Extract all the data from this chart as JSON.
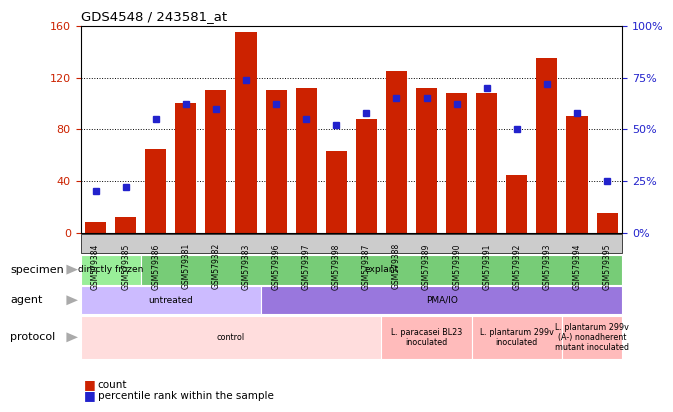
{
  "title": "GDS4548 / 243581_at",
  "samples": [
    "GSM579384",
    "GSM579385",
    "GSM579386",
    "GSM579381",
    "GSM579382",
    "GSM579383",
    "GSM579396",
    "GSM579397",
    "GSM579398",
    "GSM579387",
    "GSM579388",
    "GSM579389",
    "GSM579390",
    "GSM579391",
    "GSM579392",
    "GSM579393",
    "GSM579394",
    "GSM579395"
  ],
  "counts": [
    8,
    12,
    65,
    100,
    110,
    155,
    110,
    112,
    63,
    88,
    125,
    112,
    108,
    108,
    45,
    135,
    90,
    15
  ],
  "percentiles": [
    20,
    22,
    55,
    62,
    60,
    74,
    62,
    55,
    52,
    58,
    65,
    65,
    62,
    70,
    50,
    72,
    58,
    25
  ],
  "bar_color": "#cc2200",
  "dot_color": "#2222cc",
  "left_ylim": [
    0,
    160
  ],
  "right_ylim": [
    0,
    100
  ],
  "left_yticks": [
    0,
    40,
    80,
    120,
    160
  ],
  "right_yticks": [
    0,
    25,
    50,
    75,
    100
  ],
  "right_yticklabels": [
    "0%",
    "25%",
    "50%",
    "75%",
    "100%"
  ],
  "xtick_bg_color": "#cccccc",
  "specimen_groups": [
    {
      "label": "directly frozen",
      "start": 0,
      "end": 2,
      "color": "#99ee99"
    },
    {
      "label": "explant",
      "start": 2,
      "end": 18,
      "color": "#77cc77"
    }
  ],
  "agent_groups": [
    {
      "label": "untreated",
      "start": 0,
      "end": 6,
      "color": "#ccbbff"
    },
    {
      "label": "PMA/IO",
      "start": 6,
      "end": 18,
      "color": "#9977dd"
    }
  ],
  "protocol_groups": [
    {
      "label": "control",
      "start": 0,
      "end": 10,
      "color": "#ffdddd"
    },
    {
      "label": "L. paracasei BL23\ninoculated",
      "start": 10,
      "end": 13,
      "color": "#ffbbbb"
    },
    {
      "label": "L. plantarum 299v\ninoculated",
      "start": 13,
      "end": 16,
      "color": "#ffbbbb"
    },
    {
      "label": "L. plantarum 299v\n(A-) nonadherent\nmutant inoculated",
      "start": 16,
      "end": 18,
      "color": "#ffbbbb"
    }
  ],
  "row_labels": [
    "specimen",
    "agent",
    "protocol"
  ],
  "legend_count_label": "count",
  "legend_pct_label": "percentile rank within the sample"
}
